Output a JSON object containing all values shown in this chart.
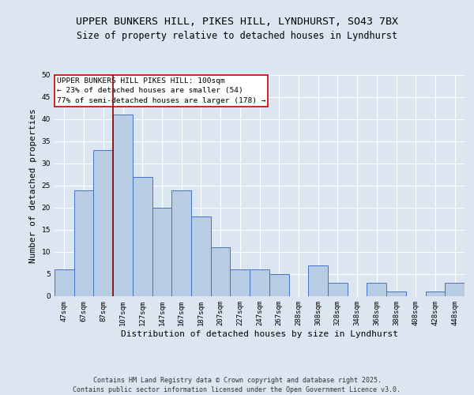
{
  "title_line1": "UPPER BUNKERS HILL, PIKES HILL, LYNDHURST, SO43 7BX",
  "title_line2": "Size of property relative to detached houses in Lyndhurst",
  "xlabel": "Distribution of detached houses by size in Lyndhurst",
  "ylabel": "Number of detached properties",
  "categories": [
    "47sqm",
    "67sqm",
    "87sqm",
    "107sqm",
    "127sqm",
    "147sqm",
    "167sqm",
    "187sqm",
    "207sqm",
    "227sqm",
    "247sqm",
    "267sqm",
    "288sqm",
    "308sqm",
    "328sqm",
    "348sqm",
    "368sqm",
    "388sqm",
    "408sqm",
    "428sqm",
    "448sqm"
  ],
  "values": [
    6,
    24,
    33,
    41,
    27,
    20,
    24,
    18,
    11,
    6,
    6,
    5,
    0,
    7,
    3,
    0,
    3,
    1,
    0,
    1,
    3
  ],
  "bar_color": "#b8cce4",
  "bar_edge_color": "#4472c4",
  "background_color": "#dce6f1",
  "plot_bg_color": "#dce6f1",
  "grid_color": "#ffffff",
  "vline_color": "#8b0000",
  "vline_x_index": 2.5,
  "annotation_text": "UPPER BUNKERS HILL PIKES HILL: 100sqm\n← 23% of detached houses are smaller (54)\n77% of semi-detached houses are larger (178) →",
  "footer_text": "Contains HM Land Registry data © Crown copyright and database right 2025.\nContains public sector information licensed under the Open Government Licence v3.0.",
  "ylim": [
    0,
    50
  ],
  "yticks": [
    0,
    5,
    10,
    15,
    20,
    25,
    30,
    35,
    40,
    45,
    50
  ],
  "title_fontsize": 9.5,
  "subtitle_fontsize": 8.5,
  "tick_fontsize": 6.5,
  "label_fontsize": 8,
  "annotation_fontsize": 6.8,
  "footer_fontsize": 6
}
